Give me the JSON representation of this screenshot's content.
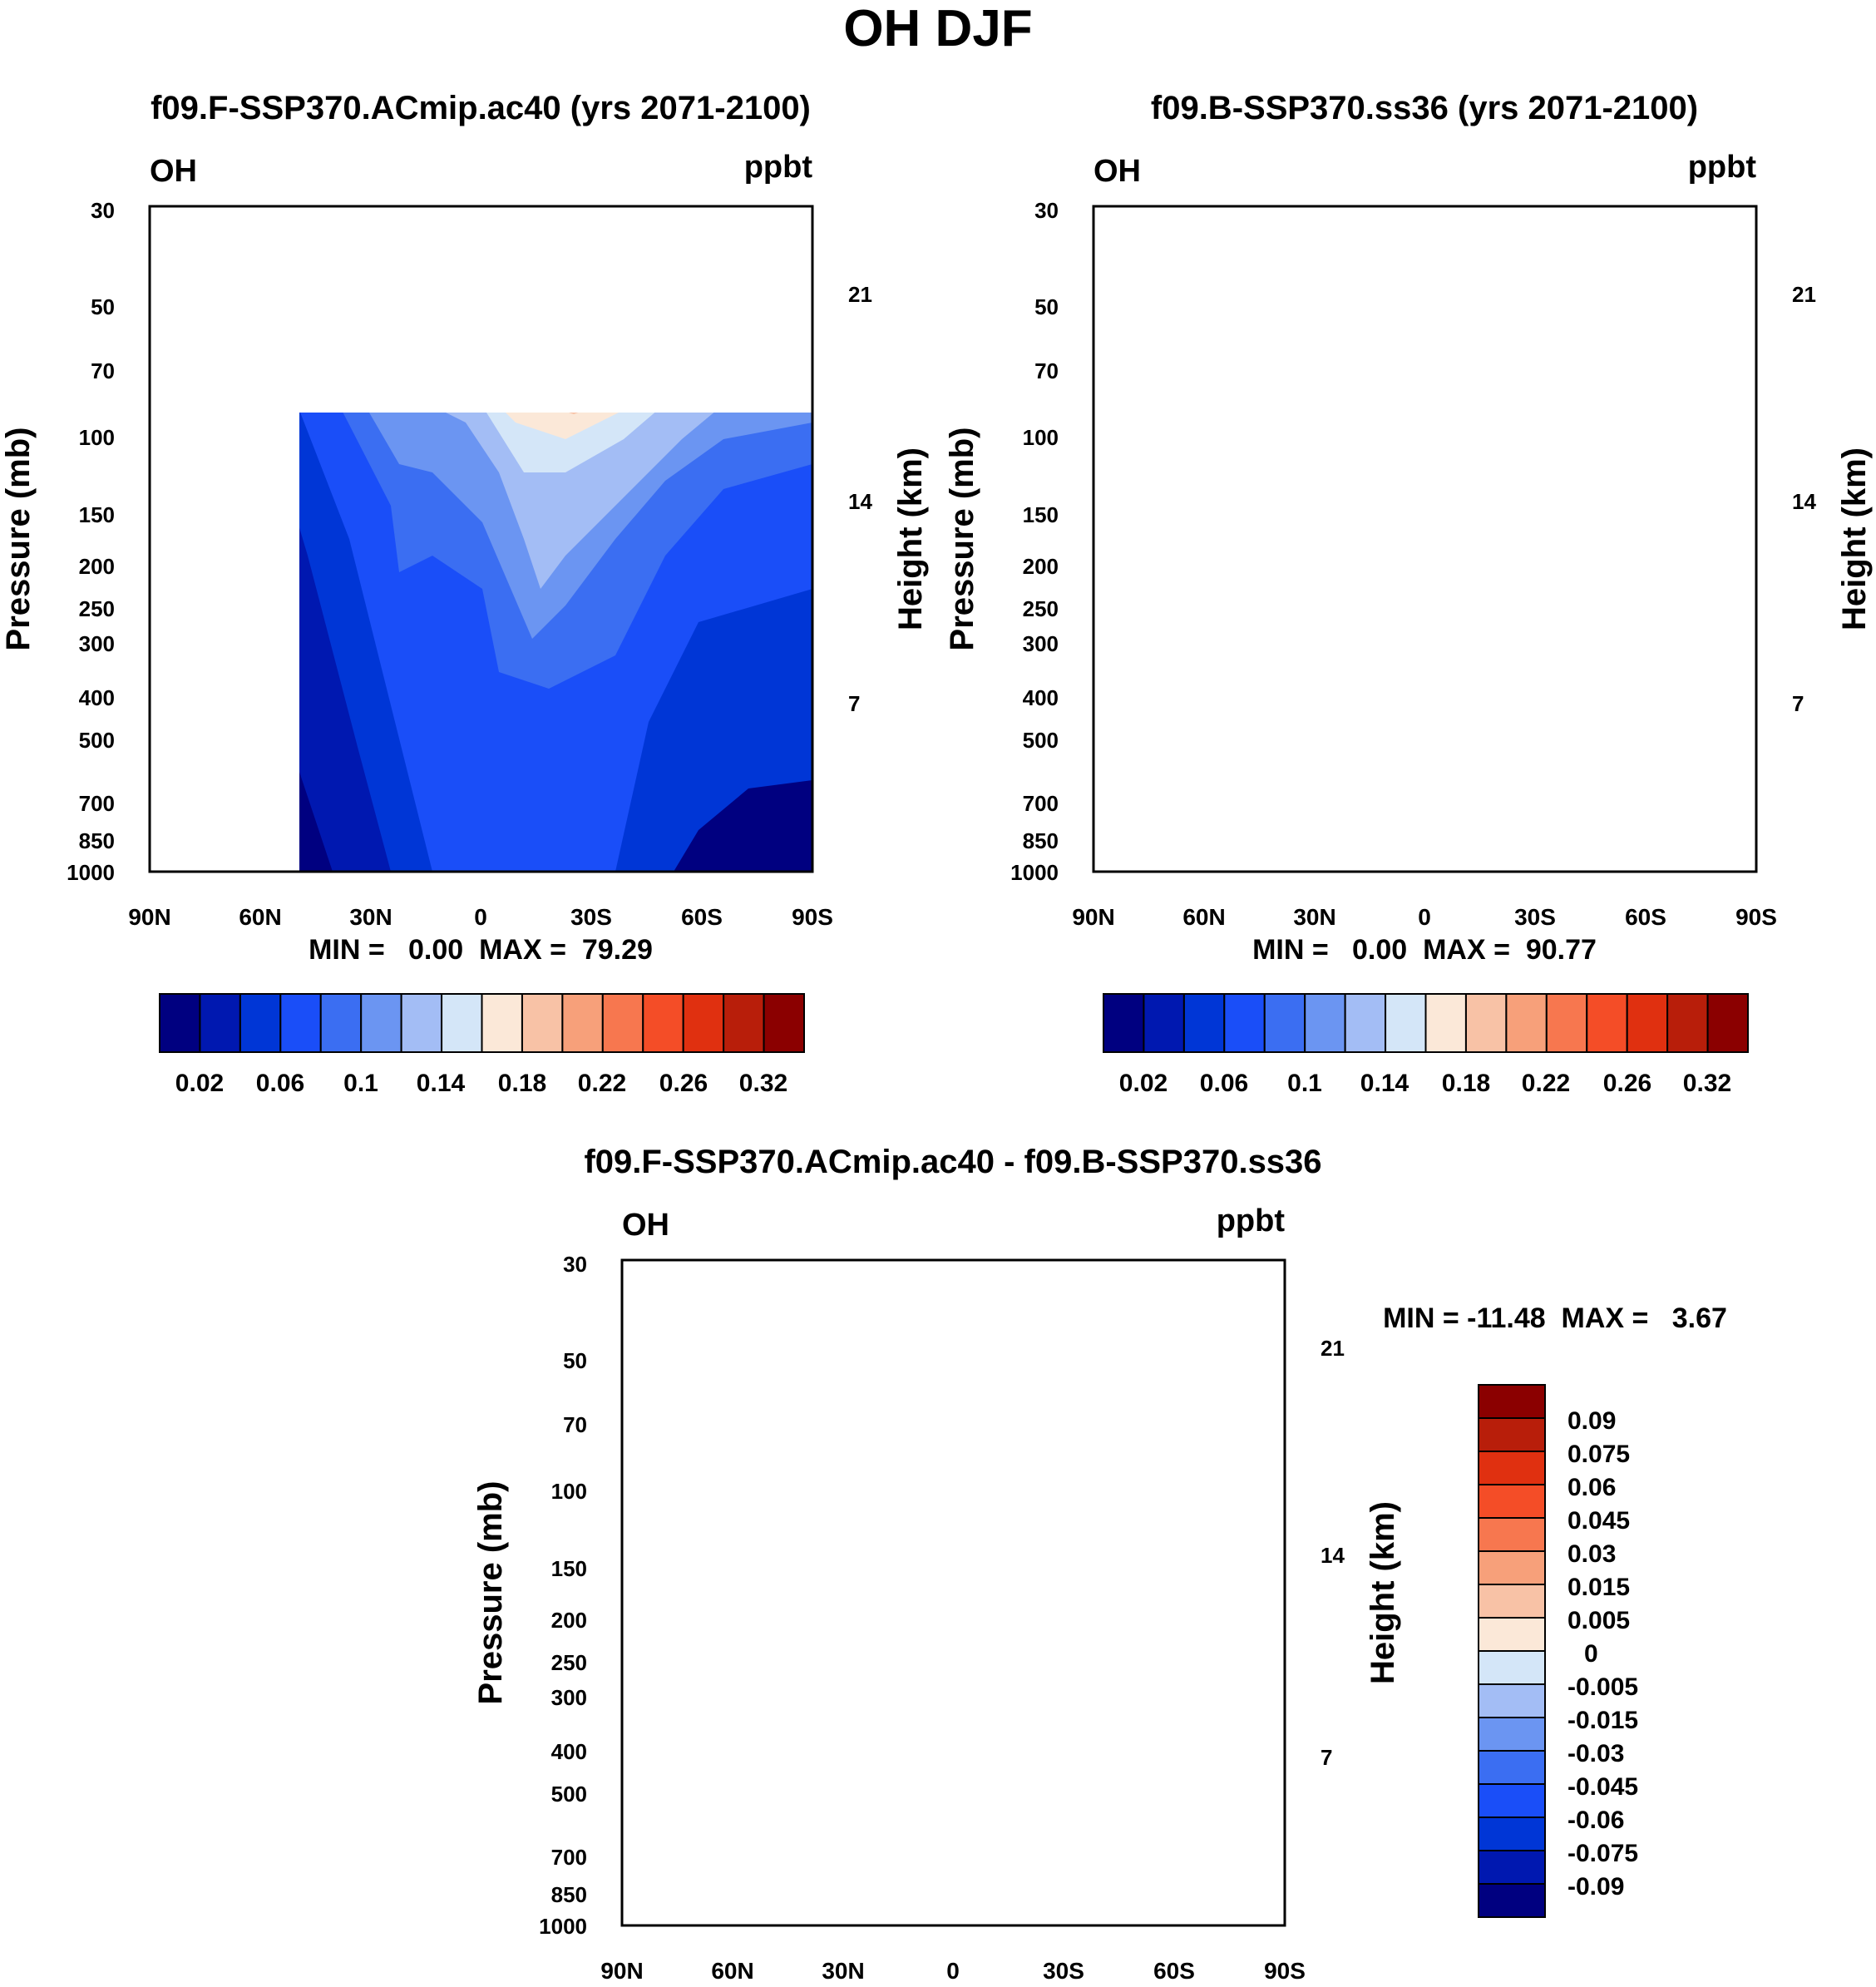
{
  "page_title": "OH DJF",
  "chart_data": [
    {
      "type": "contour",
      "title": "f09.F-SSP370.ACmip.ac40 (yrs 2071-2100)",
      "variable": "OH",
      "units": "ppbt",
      "ylabel": "Pressure (mb)",
      "ylabel_right": "Height (km)",
      "x_ticks": [
        "90N",
        "60N",
        "30N",
        "0",
        "30S",
        "60S",
        "90S"
      ],
      "x_values": [
        90,
        60,
        30,
        0,
        -30,
        -60,
        -90
      ],
      "y_ticks": [
        30,
        50,
        70,
        100,
        150,
        200,
        250,
        300,
        400,
        500,
        700,
        850,
        1000
      ],
      "y_range": [
        1000,
        30
      ],
      "height_ticks": [
        21,
        14,
        7
      ],
      "stats": "MIN =   0.00  MAX =  79.29",
      "colorbar": {
        "orientation": "horizontal",
        "labels": [
          "0.02",
          "0.06",
          "0.1",
          "0.14",
          "0.18",
          "0.22",
          "0.26",
          "0.32"
        ],
        "colors": [
          "#000080",
          "#0018b0",
          "#0036d6",
          "#1a4ef8",
          "#3b6ef2",
          "#6b95f2",
          "#a3bdf5",
          "#d4e6f8",
          "#fbe8d8",
          "#f8c2a6",
          "#f7a07a",
          "#f7774f",
          "#f44d27",
          "#e03010",
          "#b81e0a",
          "#8b0000"
        ]
      }
    },
    {
      "type": "contour",
      "title": "f09.B-SSP370.ss36 (yrs 2071-2100)",
      "variable": "OH",
      "units": "ppbt",
      "ylabel": "Pressure (mb)",
      "ylabel_right": "Height (km)",
      "x_ticks": [
        "90N",
        "60N",
        "30N",
        "0",
        "30S",
        "60S",
        "90S"
      ],
      "x_values": [
        90,
        60,
        30,
        0,
        -30,
        -60,
        -90
      ],
      "y_ticks": [
        30,
        50,
        70,
        100,
        150,
        200,
        250,
        300,
        400,
        500,
        700,
        850,
        1000
      ],
      "y_range": [
        1000,
        30
      ],
      "height_ticks": [
        21,
        14,
        7
      ],
      "stats": "MIN =   0.00  MAX =  90.77",
      "colorbar": {
        "orientation": "horizontal",
        "labels": [
          "0.02",
          "0.06",
          "0.1",
          "0.14",
          "0.18",
          "0.22",
          "0.26",
          "0.32"
        ],
        "colors": [
          "#000080",
          "#0018b0",
          "#0036d6",
          "#1a4ef8",
          "#3b6ef2",
          "#6b95f2",
          "#a3bdf5",
          "#d4e6f8",
          "#fbe8d8",
          "#f8c2a6",
          "#f7a07a",
          "#f7774f",
          "#f44d27",
          "#e03010",
          "#b81e0a",
          "#8b0000"
        ]
      }
    },
    {
      "type": "contour",
      "title": "f09.F-SSP370.ACmip.ac40 - f09.B-SSP370.ss36",
      "variable": "OH",
      "units": "ppbt",
      "ylabel": "Pressure (mb)",
      "ylabel_right": "Height (km)",
      "x_ticks": [
        "90N",
        "60N",
        "30N",
        "0",
        "30S",
        "60S",
        "90S"
      ],
      "x_values": [
        90,
        60,
        30,
        0,
        -30,
        -60,
        -90
      ],
      "y_ticks": [
        30,
        50,
        70,
        100,
        150,
        200,
        250,
        300,
        400,
        500,
        700,
        850,
        1000
      ],
      "y_range": [
        1000,
        30
      ],
      "height_ticks": [
        21,
        14,
        7
      ],
      "stats": "MIN = -11.48  MAX =   3.67",
      "colorbar": {
        "orientation": "vertical",
        "labels": [
          "0.09",
          "0.075",
          "0.06",
          "0.045",
          "0.03",
          "0.015",
          "0.005",
          "0",
          "-0.005",
          "-0.015",
          "-0.03",
          "-0.045",
          "-0.06",
          "-0.075",
          "-0.09"
        ],
        "colors": [
          "#8b0000",
          "#b81e0a",
          "#e03010",
          "#f44d27",
          "#f7774f",
          "#f7a07a",
          "#f8c2a6",
          "#fbe8d8",
          "#d4e6f8",
          "#a3bdf5",
          "#6b95f2",
          "#3b6ef2",
          "#1a4ef8",
          "#0036d6",
          "#0018b0",
          "#000080"
        ]
      }
    }
  ]
}
